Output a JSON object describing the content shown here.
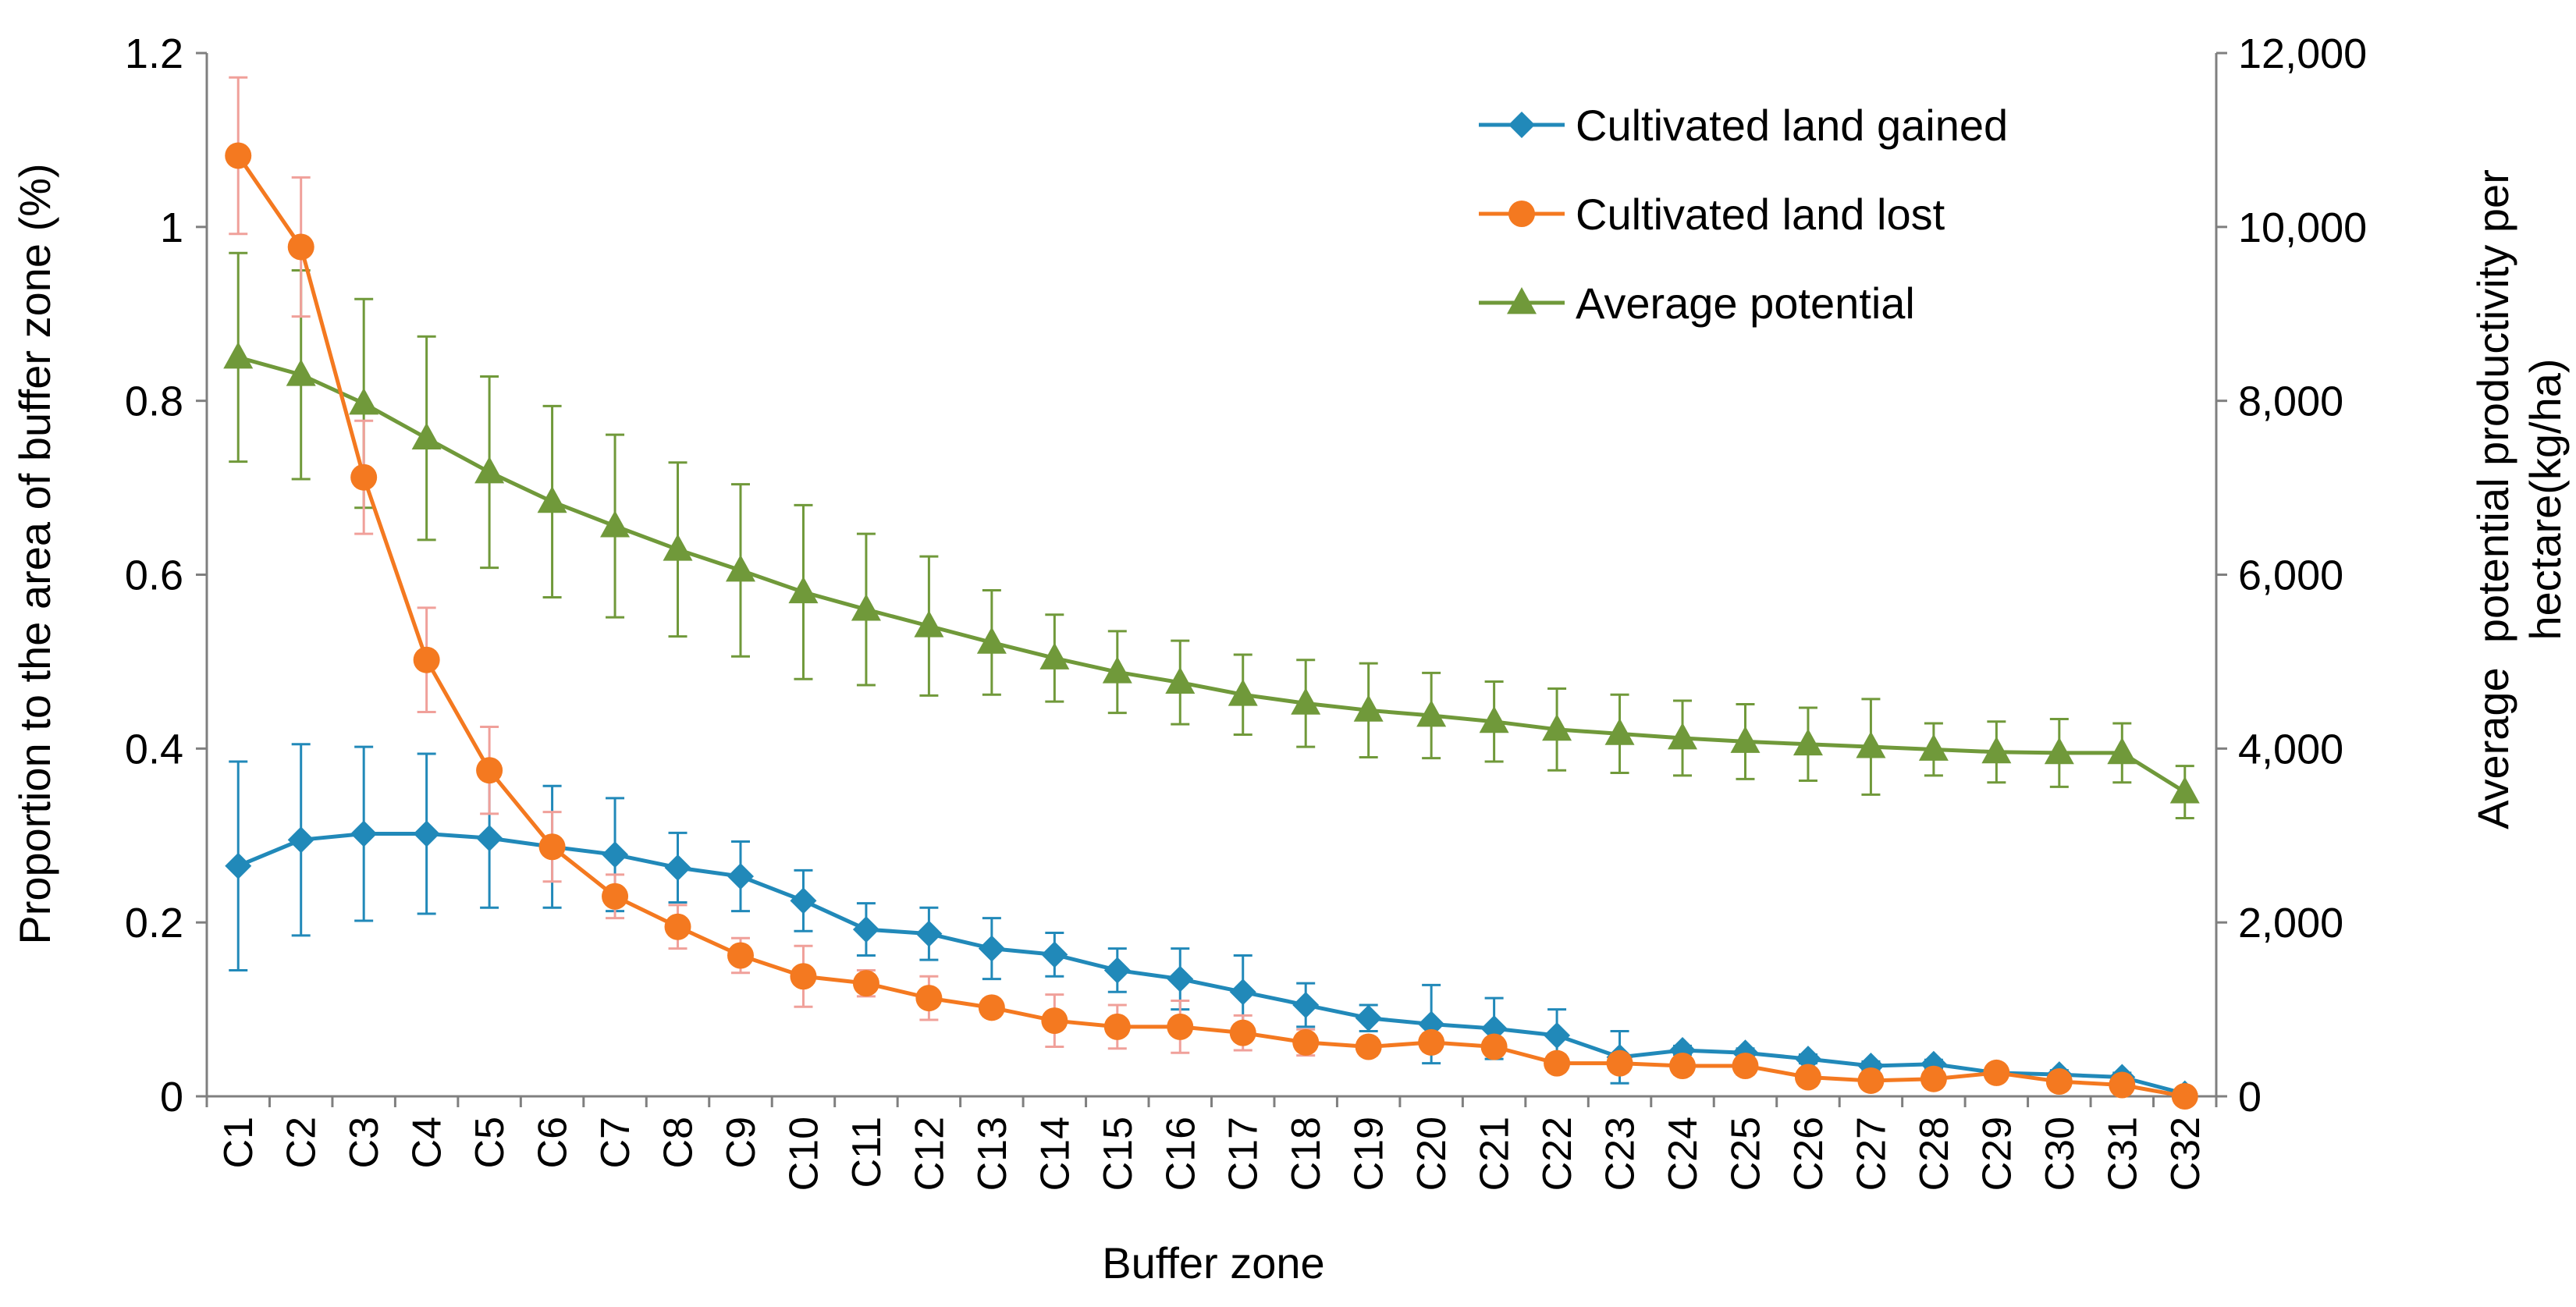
{
  "chart_data": {
    "type": "line",
    "xlabel": "Buffer zone",
    "ylabel_left": "Proportion to the area of buffer zone (%)",
    "ylabel_right": [
      "Average  potential productivity per",
      "hectare(kg/ha)"
    ],
    "categories": [
      "C1",
      "C2",
      "C3",
      "C4",
      "C5",
      "C6",
      "C7",
      "C8",
      "C9",
      "C10",
      "C11",
      "C12",
      "C13",
      "C14",
      "C15",
      "C16",
      "C17",
      "C18",
      "C19",
      "C20",
      "C21",
      "C22",
      "C23",
      "C24",
      "C25",
      "C26",
      "C27",
      "C28",
      "C29",
      "C30",
      "C31",
      "C32"
    ],
    "ylim_left": [
      0,
      1.2
    ],
    "yticks_left": [
      0,
      0.2,
      0.4,
      0.6,
      0.8,
      1,
      1.2
    ],
    "ytick_labels_left": [
      "0",
      "0.2",
      "0.4",
      "0.6",
      "0.8",
      "1",
      "1.2"
    ],
    "ylim_right": [
      0,
      12000
    ],
    "yticks_right": [
      0,
      2000,
      4000,
      6000,
      8000,
      10000,
      12000
    ],
    "ytick_labels_right": [
      "0",
      "2,000",
      "4,000",
      "6,000",
      "8,000",
      "10,000",
      "12,000"
    ],
    "legend_position": "top-right",
    "series": [
      {
        "name": "Cultivated land gained",
        "axis": "left",
        "marker": "diamond",
        "color": "#2189B9",
        "error_color": "#2189B9",
        "values": [
          0.265,
          0.295,
          0.302,
          0.302,
          0.297,
          0.287,
          0.278,
          0.263,
          0.253,
          0.225,
          0.192,
          0.187,
          0.17,
          0.163,
          0.145,
          0.135,
          0.12,
          0.105,
          0.09,
          0.083,
          0.078,
          0.07,
          0.045,
          0.053,
          0.05,
          0.043,
          0.035,
          0.037,
          0.027,
          0.025,
          0.022,
          0.003
        ],
        "errors": [
          0.12,
          0.11,
          0.1,
          0.092,
          0.08,
          0.07,
          0.065,
          0.04,
          0.04,
          0.035,
          0.03,
          0.03,
          0.035,
          0.025,
          0.025,
          0.035,
          0.042,
          0.025,
          0.015,
          0.045,
          0.035,
          0.03,
          0.03,
          0.005,
          0.005,
          0.005,
          0.005,
          0.005,
          0.005,
          0.005,
          0.005,
          0.005
        ]
      },
      {
        "name": "Cultivated land lost",
        "axis": "left",
        "marker": "circle",
        "color": "#F47920",
        "error_color": "#F0A09A",
        "values": [
          1.082,
          0.977,
          0.712,
          0.502,
          0.375,
          0.287,
          0.23,
          0.195,
          0.162,
          0.138,
          0.13,
          0.113,
          0.102,
          0.087,
          0.08,
          0.08,
          0.073,
          0.062,
          0.057,
          0.062,
          0.057,
          0.038,
          0.038,
          0.035,
          0.035,
          0.022,
          0.018,
          0.02,
          0.027,
          0.017,
          0.013,
          0.0
        ],
        "errors": [
          0.09,
          0.08,
          0.065,
          0.06,
          0.05,
          0.04,
          0.025,
          0.025,
          0.02,
          0.035,
          0.015,
          0.025,
          0.01,
          0.03,
          0.025,
          0.03,
          0.02,
          0.015,
          0.01,
          0.01,
          0.01,
          0.01,
          0.01,
          0.01,
          0.01,
          0.01,
          0.005,
          0.005,
          0.005,
          0.005,
          0.005,
          0.005
        ]
      },
      {
        "name": "Average potential",
        "axis": "right",
        "marker": "triangle",
        "color": "#70993A",
        "error_color": "#70993A",
        "values": [
          8500,
          8300,
          7970,
          7570,
          7180,
          6840,
          6560,
          6290,
          6050,
          5800,
          5600,
          5410,
          5220,
          5040,
          4880,
          4760,
          4620,
          4520,
          4440,
          4380,
          4310,
          4220,
          4170,
          4120,
          4080,
          4050,
          4020,
          3990,
          3960,
          3950,
          3950,
          3500
        ],
        "errors": [
          1200,
          1200,
          1200,
          1170,
          1100,
          1100,
          1050,
          1000,
          990,
          1000,
          870,
          800,
          600,
          500,
          470,
          480,
          460,
          500,
          540,
          490,
          460,
          470,
          450,
          430,
          430,
          420,
          550,
          300,
          350,
          390,
          340,
          300
        ]
      }
    ]
  }
}
